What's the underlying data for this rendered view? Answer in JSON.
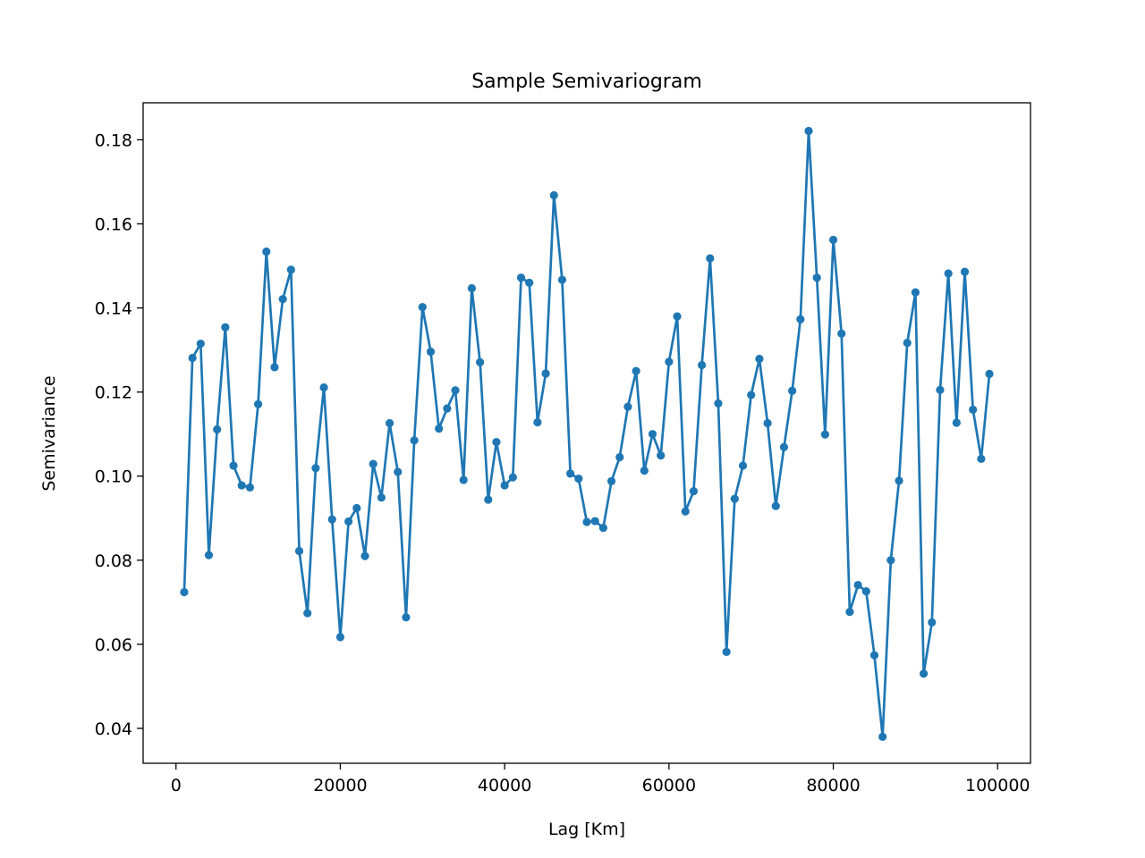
{
  "chart_data": {
    "type": "line",
    "title": "Sample Semivariogram",
    "xlabel": "Lag [Km]",
    "ylabel": "Semivariance",
    "xlim": [
      -4000,
      104000
    ],
    "ylim": [
      0.0317,
      0.1888
    ],
    "xticks": [
      0,
      20000,
      40000,
      60000,
      80000,
      100000
    ],
    "xtick_labels": [
      "0",
      "20000",
      "40000",
      "60000",
      "80000",
      "100000"
    ],
    "yticks": [
      0.04,
      0.06,
      0.08,
      0.1,
      0.12,
      0.14,
      0.16,
      0.18
    ],
    "ytick_labels": [
      "0.04",
      "0.06",
      "0.08",
      "0.10",
      "0.12",
      "0.14",
      "0.16",
      "0.18"
    ],
    "grid": false,
    "line_color": "#1f77b4",
    "series": [
      {
        "x": [
          1000,
          2000,
          3000,
          4000,
          5000,
          6000,
          7000,
          8000,
          9000,
          10000,
          11000,
          12000,
          13000,
          14000,
          15000,
          16000,
          17000,
          18000,
          19000,
          20000,
          21000,
          22000,
          23000,
          24000,
          25000,
          26000,
          27000,
          28000,
          29000,
          30000,
          31000,
          32000,
          33000,
          34000,
          35000,
          36000,
          37000,
          38000,
          39000,
          40000,
          41000,
          42000,
          43000,
          44000,
          45000,
          46000,
          47000,
          48000,
          49000,
          50000,
          51000,
          52000,
          53000,
          54000,
          55000,
          56000,
          57000,
          58000,
          59000,
          60000,
          61000,
          62000,
          63000,
          64000,
          65000,
          66000,
          67000,
          68000,
          69000,
          70000,
          71000,
          72000,
          73000,
          74000,
          75000,
          76000,
          77000,
          78000,
          79000,
          80000,
          81000,
          82000,
          83000,
          84000,
          85000,
          86000,
          87000,
          88000,
          89000,
          90000,
          91000,
          92000,
          93000,
          94000,
          95000,
          96000,
          97000,
          98000,
          99000
        ],
        "y": [
          0.0724,
          0.1281,
          0.1315,
          0.0812,
          0.1111,
          0.1354,
          0.1025,
          0.0978,
          0.0973,
          0.1171,
          0.1534,
          0.1259,
          0.1421,
          0.1491,
          0.0822,
          0.0674,
          0.1019,
          0.1211,
          0.0897,
          0.0617,
          0.0892,
          0.0924,
          0.081,
          0.1029,
          0.0949,
          0.1126,
          0.101,
          0.0664,
          0.1085,
          0.1402,
          0.1296,
          0.1113,
          0.1161,
          0.1204,
          0.0991,
          0.1447,
          0.1271,
          0.0944,
          0.1081,
          0.0978,
          0.0997,
          0.1472,
          0.146,
          0.1128,
          0.1244,
          0.1668,
          0.1467,
          0.1006,
          0.0994,
          0.0891,
          0.0893,
          0.0877,
          0.0988,
          0.1045,
          0.1165,
          0.125,
          0.1013,
          0.11,
          0.1049,
          0.1272,
          0.138,
          0.0916,
          0.0964,
          0.1264,
          0.1518,
          0.1173,
          0.0582,
          0.0946,
          0.1025,
          0.1193,
          0.1279,
          0.1126,
          0.0929,
          0.1069,
          0.1203,
          0.1373,
          0.1821,
          0.1472,
          0.1099,
          0.1562,
          0.1339,
          0.0677,
          0.0741,
          0.0726,
          0.0574,
          0.038,
          0.08,
          0.0989,
          0.1317,
          0.1437,
          0.053,
          0.0652,
          0.1205,
          0.1482,
          0.1127,
          0.1486,
          0.1158,
          0.1041,
          0.1243
        ]
      }
    ]
  }
}
